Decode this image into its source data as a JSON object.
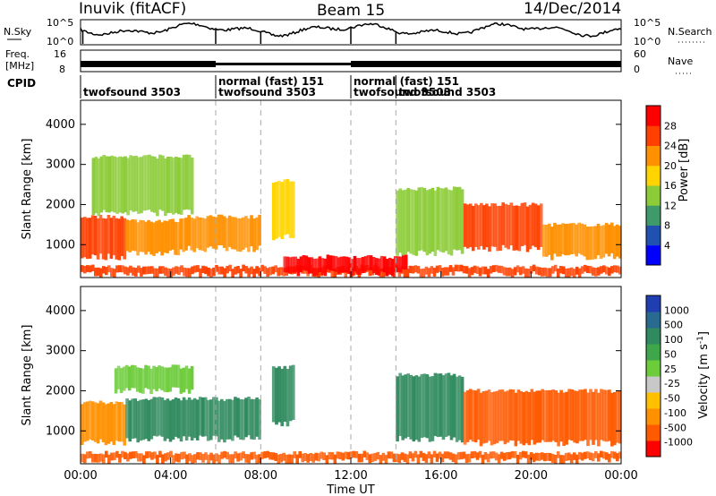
{
  "header": {
    "station": "Inuvik (fitACF)",
    "beam": "Beam 15",
    "date": "14/Dec/2014"
  },
  "noise_panel": {
    "left_label": "N.Sky",
    "left_ticks": [
      "10^5",
      "10^0"
    ],
    "right_ticks": [
      "10^5",
      "10^0"
    ],
    "right_label": "N.Search"
  },
  "freq_panel": {
    "left_label_1": "Freq.",
    "left_label_2": "[MHz]",
    "left_ticks": [
      "16",
      "8"
    ],
    "right_ticks": [
      "60",
      "0"
    ],
    "right_label": "Nave"
  },
  "cpid_panel": {
    "label": "CPID",
    "segments": [
      {
        "start_hour": 0,
        "end_hour": 6.0,
        "line1": "",
        "line2": "twofsound 3503"
      },
      {
        "start_hour": 6.0,
        "end_hour": 12.0,
        "line1": "normal (fast) 151",
        "line2": "twofsound 3503"
      },
      {
        "start_hour": 12.0,
        "end_hour": 14.0,
        "line1": "normal (fast) 151",
        "line2": "twofsound 3503"
      },
      {
        "start_hour": 14.0,
        "end_hour": 24.0,
        "line1": "",
        "line2": "twofsound 3503"
      }
    ]
  },
  "x_axis": {
    "label": "Time UT",
    "ticks": [
      "00:00",
      "04:00",
      "08:00",
      "12:00",
      "16:00",
      "20:00",
      "00:00"
    ],
    "tick_hours": [
      0,
      4,
      8,
      12,
      16,
      20,
      24
    ],
    "range_hours": [
      0,
      24
    ]
  },
  "power_panel": {
    "ylabel": "Slant Range [km]",
    "yticks": [
      "1000",
      "2000",
      "3000",
      "4000"
    ],
    "ytick_values": [
      1000,
      2000,
      3000,
      4000
    ],
    "ylim": [
      180,
      4600
    ],
    "colorbar_label": "Power [dB]",
    "colorbar_ticks": [
      "4",
      "8",
      "12",
      "16",
      "20",
      "24",
      "28"
    ],
    "colors": [
      "#0000ff",
      "#2050b0",
      "#3f9a6a",
      "#8ccc38",
      "#ffd400",
      "#ff9000",
      "#ff4000",
      "#ff0000"
    ]
  },
  "velocity_panel": {
    "ylabel": "Slant Range [km]",
    "yticks": [
      "1000",
      "2000",
      "3000",
      "4000"
    ],
    "ytick_values": [
      1000,
      2000,
      3000,
      4000
    ],
    "ylim": [
      180,
      4600
    ],
    "colorbar_label": "Velocity [m s",
    "colorbar_label_sup": "-1",
    "colorbar_label_end": "]",
    "colorbar_ticks": [
      "1000",
      "500",
      "100",
      "50",
      "25",
      "-25",
      "-50",
      "-100",
      "-500",
      "-1000"
    ],
    "colors": [
      "#1f3fb0",
      "#2a6a90",
      "#2f8a5e",
      "#3fa64c",
      "#6ccc3a",
      "#c8c8c8",
      "#ffc000",
      "#ff9000",
      "#ff5a00",
      "#ff0000"
    ]
  },
  "chart_data": {
    "type": "heatmap",
    "x_unit": "hours UT",
    "y_unit": "km",
    "mode_change_hours": [
      6.0,
      8.0,
      12.0,
      14.0
    ],
    "power_regions": [
      {
        "t0": 0.0,
        "t1": 2.0,
        "r0": 700,
        "r1": 1700,
        "power_db": 26
      },
      {
        "t0": 2.0,
        "t1": 4.5,
        "r0": 800,
        "r1": 1600,
        "power_db": 22
      },
      {
        "t0": 4.5,
        "t1": 8.0,
        "r0": 900,
        "r1": 1700,
        "power_db": 20
      },
      {
        "t0": 8.5,
        "t1": 9.5,
        "r0": 1200,
        "r1": 2600,
        "power_db": 18
      },
      {
        "t0": 0.0,
        "t1": 24.0,
        "r0": 250,
        "r1": 450,
        "power_db": 24
      },
      {
        "t0": 9.0,
        "t1": 14.5,
        "r0": 300,
        "r1": 700,
        "power_db": 28
      },
      {
        "t0": 14.0,
        "t1": 17.0,
        "r0": 800,
        "r1": 2400,
        "power_db": 14
      },
      {
        "t0": 17.0,
        "t1": 20.5,
        "r0": 900,
        "r1": 2000,
        "power_db": 24
      },
      {
        "t0": 20.5,
        "t1": 24.0,
        "r0": 700,
        "r1": 1500,
        "power_db": 22
      },
      {
        "t0": 0.5,
        "t1": 5.0,
        "r0": 1800,
        "r1": 3200,
        "power_db": 12
      }
    ],
    "velocity_regions": [
      {
        "t0": 0.0,
        "t1": 2.0,
        "r0": 700,
        "r1": 1700,
        "velocity": -50
      },
      {
        "t0": 2.0,
        "t1": 8.0,
        "r0": 800,
        "r1": 1800,
        "velocity": 100
      },
      {
        "t0": 8.5,
        "t1": 9.5,
        "r0": 1200,
        "r1": 2600,
        "velocity": 100
      },
      {
        "t0": 0.0,
        "t1": 24.0,
        "r0": 250,
        "r1": 450,
        "velocity": -100
      },
      {
        "t0": 14.0,
        "t1": 17.0,
        "r0": 800,
        "r1": 2400,
        "velocity": 100
      },
      {
        "t0": 17.0,
        "t1": 24.0,
        "r0": 700,
        "r1": 2000,
        "velocity": -100
      },
      {
        "t0": 1.5,
        "t1": 5.0,
        "r0": 2000,
        "r1": 2600,
        "velocity": 25
      }
    ]
  }
}
